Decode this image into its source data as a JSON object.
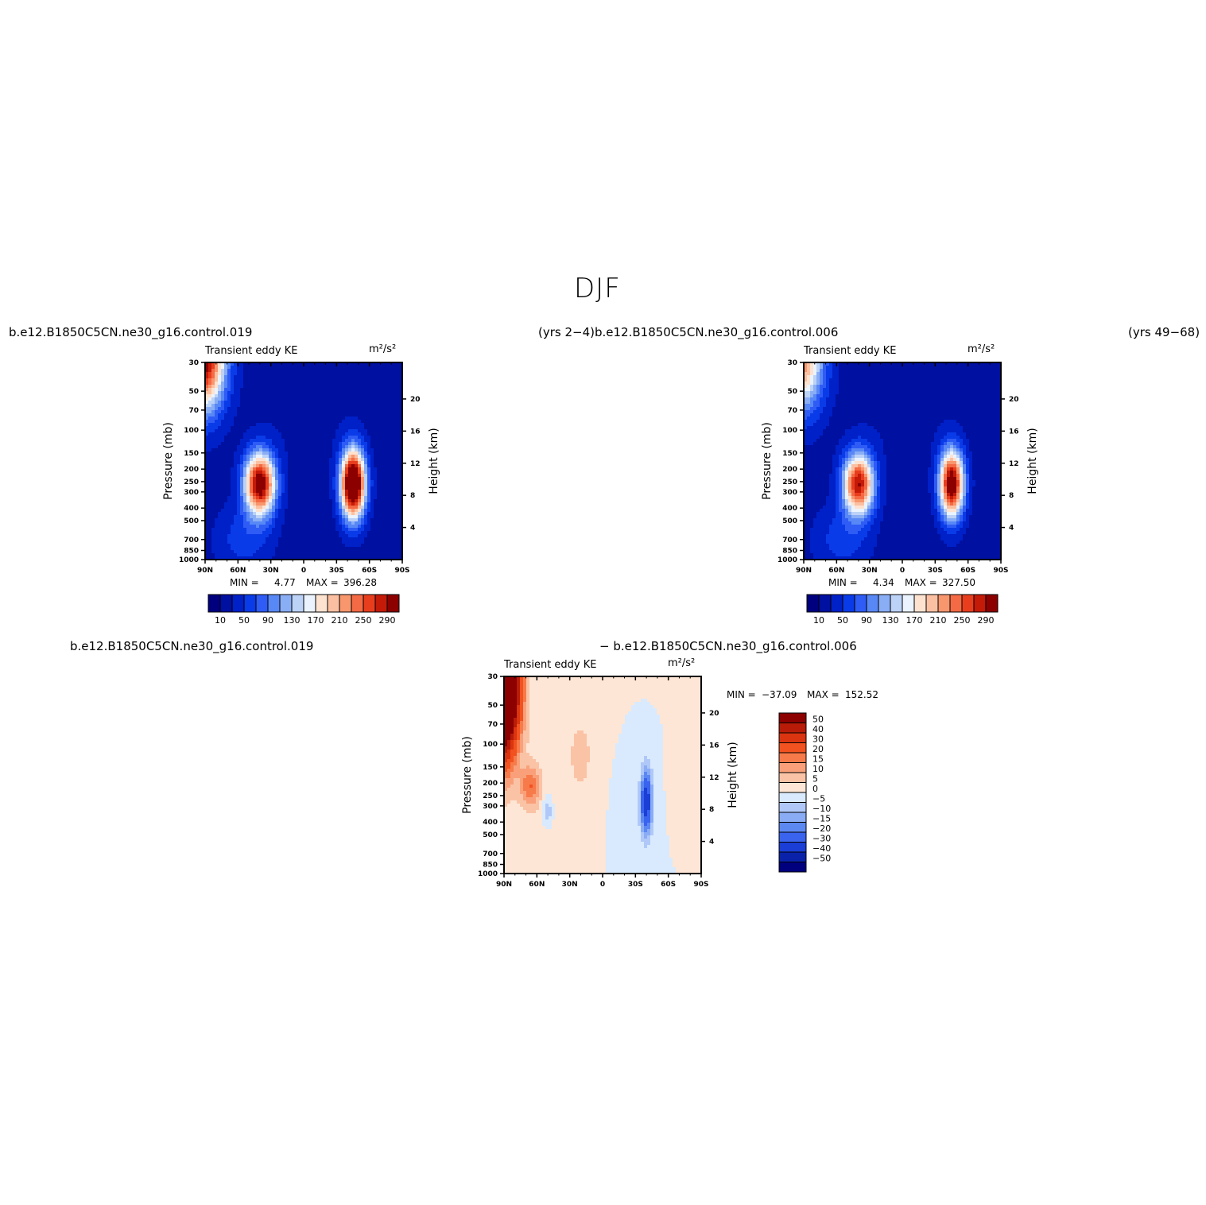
{
  "page": {
    "title": "DJF",
    "left_top_label": "b.e12.B1850C5CN.ne30_g16.control.019",
    "mid_top_label": "(yrs 2−4)b.e12.B1850C5CN.ne30_g16.control.006",
    "right_top_label": "(yrs 49−68)",
    "bottom_left_label": "b.e12.B1850C5CN.ne30_g16.control.019",
    "bottom_mid_label": "− b.e12.B1850C5CN.ne30_g16.control.006"
  },
  "chart_data": [
    {
      "type": "heatmap",
      "id": "panel-1",
      "title": "Transient eddy KE",
      "units": "m²/s²",
      "xlabel": "",
      "ylabel": "Pressure  (mb)",
      "ylabel_right": "Height  (km)",
      "x_ticks": [
        "90N",
        "60N",
        "30N",
        "0",
        "30S",
        "60S",
        "90S"
      ],
      "y_ticks": [
        "30",
        "50",
        "70",
        "100",
        "150",
        "200",
        "250",
        "300",
        "400",
        "500",
        "700",
        "850",
        "1000"
      ],
      "y_ticks_right": [
        "20",
        "16",
        "12",
        "8",
        "4"
      ],
      "min_label": "MIN  =",
      "min_value": "4.77",
      "max_label": "MAX  =",
      "max_value": "396.28",
      "colorbar_labels": [
        "10",
        "50",
        "90",
        "130",
        "170",
        "210",
        "250",
        "290"
      ],
      "colorbar_levels": [
        10,
        30,
        50,
        70,
        90,
        110,
        130,
        150,
        170,
        190,
        210,
        230,
        250,
        270,
        290
      ],
      "features": [
        {
          "lat": 40,
          "p": 260,
          "value": 330
        },
        {
          "lat": -45,
          "p": 260,
          "value": 396
        },
        {
          "lat": 90,
          "p": 30,
          "value": 300
        }
      ]
    },
    {
      "type": "heatmap",
      "id": "panel-2",
      "title": "Transient eddy KE",
      "units": "m²/s²",
      "xlabel": "",
      "ylabel": "Pressure  (mb)",
      "ylabel_right": "Height  (km)",
      "x_ticks": [
        "90N",
        "60N",
        "30N",
        "0",
        "30S",
        "60S",
        "90S"
      ],
      "y_ticks": [
        "30",
        "50",
        "70",
        "100",
        "150",
        "200",
        "250",
        "300",
        "400",
        "500",
        "700",
        "850",
        "1000"
      ],
      "y_ticks_right": [
        "20",
        "16",
        "12",
        "8",
        "4"
      ],
      "min_label": "MIN  =",
      "min_value": "4.34",
      "max_label": "MAX  =",
      "max_value": "327.50",
      "colorbar_labels": [
        "10",
        "50",
        "90",
        "130",
        "170",
        "210",
        "250",
        "290"
      ],
      "colorbar_levels": [
        10,
        30,
        50,
        70,
        90,
        110,
        130,
        150,
        170,
        190,
        210,
        230,
        250,
        270,
        290
      ],
      "features": [
        {
          "lat": 40,
          "p": 260,
          "value": 290
        },
        {
          "lat": -45,
          "p": 260,
          "value": 327
        },
        {
          "lat": 90,
          "p": 30,
          "value": 220
        }
      ]
    },
    {
      "type": "heatmap",
      "id": "panel-diff",
      "title": "Transient eddy KE",
      "units": "m²/s²",
      "xlabel": "",
      "ylabel": "Pressure  (mb)",
      "ylabel_right": "Height  (km)",
      "x_ticks": [
        "90N",
        "60N",
        "30N",
        "0",
        "30S",
        "60S",
        "90S"
      ],
      "y_ticks": [
        "30",
        "50",
        "70",
        "100",
        "150",
        "200",
        "250",
        "300",
        "400",
        "500",
        "700",
        "850",
        "1000"
      ],
      "y_ticks_right": [
        "20",
        "16",
        "12",
        "8",
        "4"
      ],
      "min_label": "MIN  =",
      "min_value": "−37.09",
      "max_label": "MAX  =",
      "max_value": "152.52",
      "colorbar_labels": [
        "50",
        "40",
        "30",
        "20",
        "15",
        "10",
        "5",
        "0",
        "−5",
        "−10",
        "−15",
        "−20",
        "−30",
        "−40",
        "−50"
      ],
      "features": [
        {
          "lat": 85,
          "p": 35,
          "value": 150
        },
        {
          "lat": -42,
          "p": 280,
          "value": -37
        },
        {
          "lat": 65,
          "p": 220,
          "value": 20
        }
      ]
    }
  ],
  "colors": {
    "ke_scale": [
      "#00007f",
      "#0010a0",
      "#0020c8",
      "#0a3be8",
      "#2e5cf5",
      "#5888f5",
      "#8aaef5",
      "#bcd2f7",
      "#eaf3fe",
      "#fde2d0",
      "#fbc0a2",
      "#f8966e",
      "#f46a44",
      "#e83e1e",
      "#c41a08",
      "#8c0000"
    ],
    "diff_scale": [
      "#8c0000",
      "#b81c08",
      "#da3410",
      "#f2521f",
      "#f77a4a",
      "#f9a07a",
      "#fbc3a6",
      "#fde6d5",
      "#d9eafe",
      "#b0c8f8",
      "#8aacf5",
      "#5c88f2",
      "#3a63ee",
      "#1a3ed6",
      "#0a22aa",
      "#00007f"
    ]
  }
}
